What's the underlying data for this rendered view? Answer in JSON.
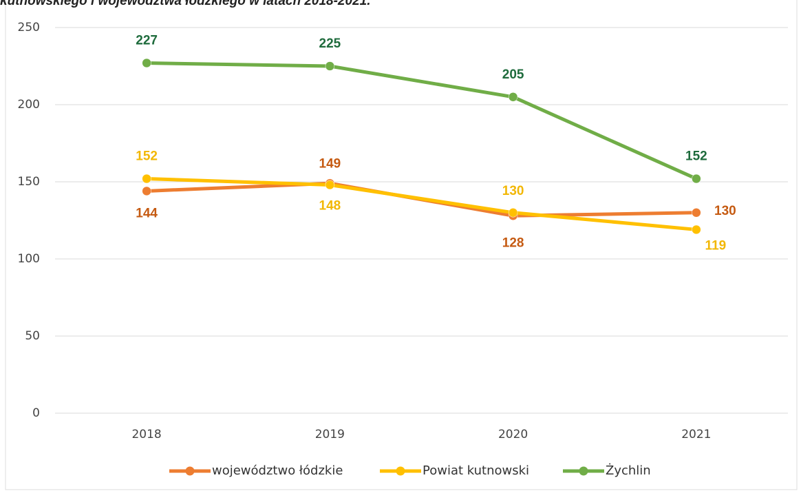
{
  "chart_data": {
    "type": "line",
    "title": "kutnowskiego i województwa łódzkiego w latach 2018-2021.",
    "categories": [
      "2018",
      "2019",
      "2020",
      "2021"
    ],
    "series": [
      {
        "name": "województwo łódzkie",
        "color": "#ed7d31",
        "label_color": "#c55a11",
        "values": [
          144,
          149,
          128,
          130
        ]
      },
      {
        "name": "Powiat kutnowski",
        "color": "#ffc000",
        "label_color": "#f2b705",
        "values": [
          152,
          148,
          130,
          119
        ]
      },
      {
        "name": "Żychlin",
        "color": "#70ad47",
        "label_color": "#1e6b3c",
        "values": [
          227,
          225,
          205,
          152
        ]
      }
    ],
    "ylim": [
      0,
      250
    ],
    "yticks": [
      0,
      50,
      100,
      150,
      200,
      250
    ],
    "grid": true,
    "legend": "bottom"
  }
}
